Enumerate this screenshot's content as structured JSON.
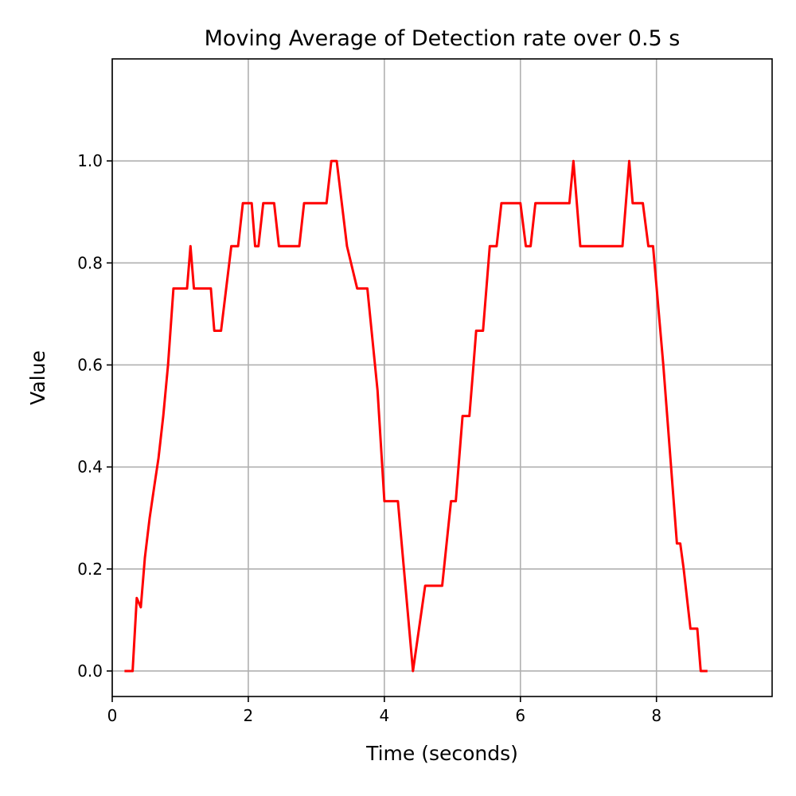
{
  "chart_data": {
    "type": "line",
    "title": "Moving Average of Detection rate over 0.5 s",
    "xlabel": "Time (seconds)",
    "ylabel": "Value",
    "xlim": [
      0,
      9.7
    ],
    "ylim": [
      -0.05,
      1.2
    ],
    "x_ticks": [
      0,
      2,
      4,
      6,
      8
    ],
    "x_tick_labels": [
      "0",
      "2",
      "4",
      "6",
      "8"
    ],
    "y_ticks": [
      0.0,
      0.2,
      0.4,
      0.6,
      0.8,
      1.0
    ],
    "y_tick_labels": [
      "0.0",
      "0.2",
      "0.4",
      "0.6",
      "0.8",
      "1.0"
    ],
    "grid": true,
    "legend": null,
    "series": [
      {
        "color": "#ff0000",
        "x": [
          0.18,
          0.3,
          0.36,
          0.42,
          0.48,
          0.55,
          0.62,
          0.68,
          0.75,
          0.82,
          0.9,
          1.1,
          1.15,
          1.2,
          1.45,
          1.5,
          1.6,
          1.75,
          1.85,
          1.92,
          2.05,
          2.1,
          2.15,
          2.22,
          2.38,
          2.45,
          2.75,
          2.82,
          3.15,
          3.22,
          3.3,
          3.45,
          3.6,
          3.75,
          3.9,
          4.0,
          4.2,
          4.42,
          4.6,
          4.85,
          4.98,
          5.05,
          5.15,
          5.25,
          5.3,
          5.35,
          5.45,
          5.55,
          5.65,
          5.72,
          5.85,
          6.0,
          6.08,
          6.15,
          6.22,
          6.35,
          6.5,
          6.6,
          6.72,
          6.78,
          6.88,
          7.1,
          7.5,
          7.6,
          7.65,
          7.7,
          7.8,
          7.88,
          7.95,
          8.1,
          8.3,
          8.35,
          8.4,
          8.5,
          8.6,
          8.65,
          8.75
        ],
        "values": [
          0.0,
          0.0,
          0.143,
          0.125,
          0.222,
          0.3,
          0.364,
          0.417,
          0.5,
          0.6,
          0.75,
          0.75,
          0.833,
          0.75,
          0.75,
          0.667,
          0.667,
          0.833,
          0.833,
          0.917,
          0.917,
          0.833,
          0.833,
          0.917,
          0.917,
          0.833,
          0.833,
          0.917,
          0.917,
          1.0,
          1.0,
          0.833,
          0.75,
          0.75,
          0.55,
          0.333,
          0.333,
          0.0,
          0.167,
          0.167,
          0.333,
          0.333,
          0.5,
          0.5,
          0.583,
          0.667,
          0.667,
          0.833,
          0.833,
          0.917,
          0.917,
          0.917,
          0.833,
          0.833,
          0.917,
          0.917,
          0.917,
          0.917,
          0.917,
          1.0,
          0.833,
          0.833,
          0.833,
          1.0,
          0.917,
          0.917,
          0.917,
          0.833,
          0.833,
          0.6,
          0.25,
          0.25,
          0.2,
          0.083,
          0.083,
          0.0,
          0.0
        ]
      }
    ]
  }
}
